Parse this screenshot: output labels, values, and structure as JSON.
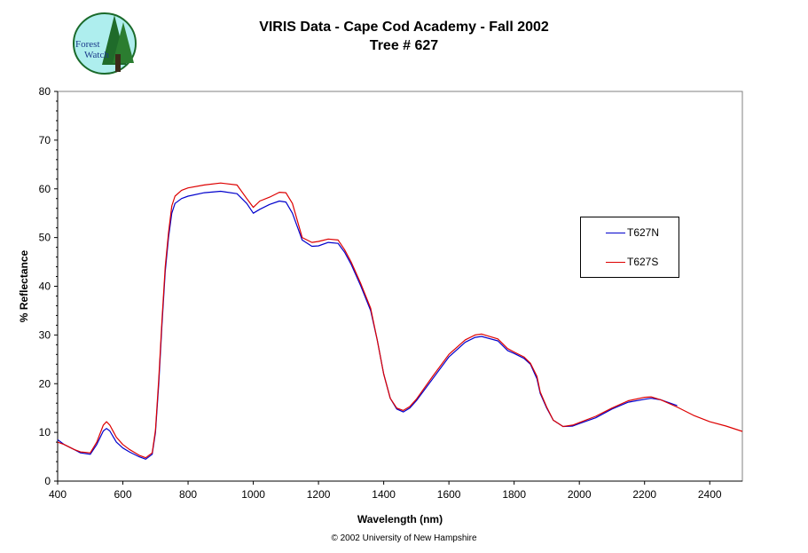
{
  "header": {
    "logo_text_1": "Forest",
    "logo_text_2": "Watch",
    "title_line1": "VIRIS Data - Cape Cod Academy - Fall 2002",
    "title_line2": "Tree # 627"
  },
  "footer": {
    "copyright": "© 2002 University of New Hampshire"
  },
  "colors": {
    "series1": "#0000cc",
    "series2": "#dd0000",
    "logo_bg": "#aeeeee"
  },
  "chart_data": {
    "type": "line",
    "title": "VIRIS Data - Cape Cod Academy - Fall 2002",
    "subtitle": "Tree # 627",
    "xlabel": "Wavelength (nm)",
    "ylabel": "% Reflectance",
    "xlim": [
      400,
      2500
    ],
    "ylim": [
      0,
      80
    ],
    "xticks": [
      400,
      600,
      800,
      1000,
      1200,
      1400,
      1600,
      1800,
      2000,
      2200,
      2400
    ],
    "yticks": [
      0,
      10,
      20,
      30,
      40,
      50,
      60,
      70,
      80
    ],
    "grid": false,
    "legend_position": "right",
    "series": [
      {
        "name": "T627N",
        "color": "#0000cc",
        "x": [
          400,
          420,
          450,
          470,
          500,
          520,
          540,
          550,
          560,
          580,
          600,
          620,
          650,
          670,
          690,
          700,
          710,
          720,
          730,
          740,
          750,
          760,
          780,
          800,
          850,
          900,
          950,
          980,
          1000,
          1020,
          1050,
          1080,
          1100,
          1120,
          1150,
          1180,
          1200,
          1230,
          1260,
          1280,
          1300,
          1330,
          1360,
          1380,
          1400,
          1420,
          1440,
          1460,
          1480,
          1500,
          1550,
          1600,
          1650,
          1680,
          1700,
          1750,
          1780,
          1800,
          1830,
          1850,
          1870,
          1880,
          1900,
          1920,
          1950,
          1980,
          2000,
          2050,
          2100,
          2150,
          2200,
          2220,
          2250,
          2300
        ],
        "y": [
          8.5,
          7.5,
          6.5,
          5.8,
          5.5,
          7.5,
          10.3,
          10.8,
          10.3,
          8.0,
          6.8,
          6.0,
          5.0,
          4.5,
          5.5,
          10,
          20,
          32,
          43,
          50,
          55,
          57,
          58,
          58.5,
          59.2,
          59.5,
          59.0,
          57,
          55,
          55.8,
          56.8,
          57.5,
          57.3,
          55,
          49.5,
          48.2,
          48.3,
          49,
          48.8,
          47,
          44.5,
          40,
          35,
          29,
          22,
          17,
          14.8,
          14.2,
          15,
          16.5,
          21,
          25.5,
          28.5,
          29.5,
          29.7,
          28.8,
          26.8,
          26.2,
          25.2,
          24,
          21,
          18,
          15,
          12.5,
          11.2,
          11.3,
          11.8,
          13,
          14.8,
          16.2,
          16.8,
          17,
          16.7,
          15.5
        ]
      },
      {
        "name": "T627S",
        "color": "#dd0000",
        "x": [
          400,
          420,
          450,
          470,
          500,
          520,
          540,
          550,
          560,
          580,
          600,
          620,
          650,
          670,
          690,
          700,
          710,
          720,
          730,
          740,
          750,
          760,
          780,
          800,
          850,
          900,
          950,
          980,
          1000,
          1020,
          1050,
          1080,
          1100,
          1120,
          1150,
          1180,
          1200,
          1230,
          1260,
          1280,
          1300,
          1330,
          1360,
          1380,
          1400,
          1420,
          1440,
          1460,
          1480,
          1500,
          1550,
          1600,
          1650,
          1680,
          1700,
          1750,
          1780,
          1800,
          1830,
          1850,
          1870,
          1880,
          1900,
          1920,
          1950,
          1980,
          2000,
          2050,
          2100,
          2150,
          2200,
          2220,
          2250,
          2300,
          2350,
          2400,
          2450,
          2500
        ],
        "y": [
          8.0,
          7.5,
          6.5,
          6.0,
          5.8,
          8.0,
          11.5,
          12.2,
          11.5,
          9.0,
          7.5,
          6.5,
          5.3,
          4.8,
          5.8,
          10.5,
          21,
          33,
          44,
          51,
          56.5,
          58.5,
          59.7,
          60.2,
          60.8,
          61.2,
          60.8,
          58,
          56.2,
          57.5,
          58.3,
          59.3,
          59.2,
          57,
          50,
          49,
          49.2,
          49.7,
          49.5,
          47.5,
          45,
          40.5,
          35.5,
          29,
          22,
          17,
          15,
          14.5,
          15.3,
          16.8,
          21.5,
          26,
          29,
          30,
          30.2,
          29.2,
          27.2,
          26.5,
          25.5,
          24.2,
          21.5,
          18.3,
          15.2,
          12.5,
          11.2,
          11.5,
          12,
          13.3,
          15,
          16.5,
          17.2,
          17.3,
          16.7,
          15.2,
          13.5,
          12.2,
          11.3,
          10.2
        ]
      }
    ]
  }
}
